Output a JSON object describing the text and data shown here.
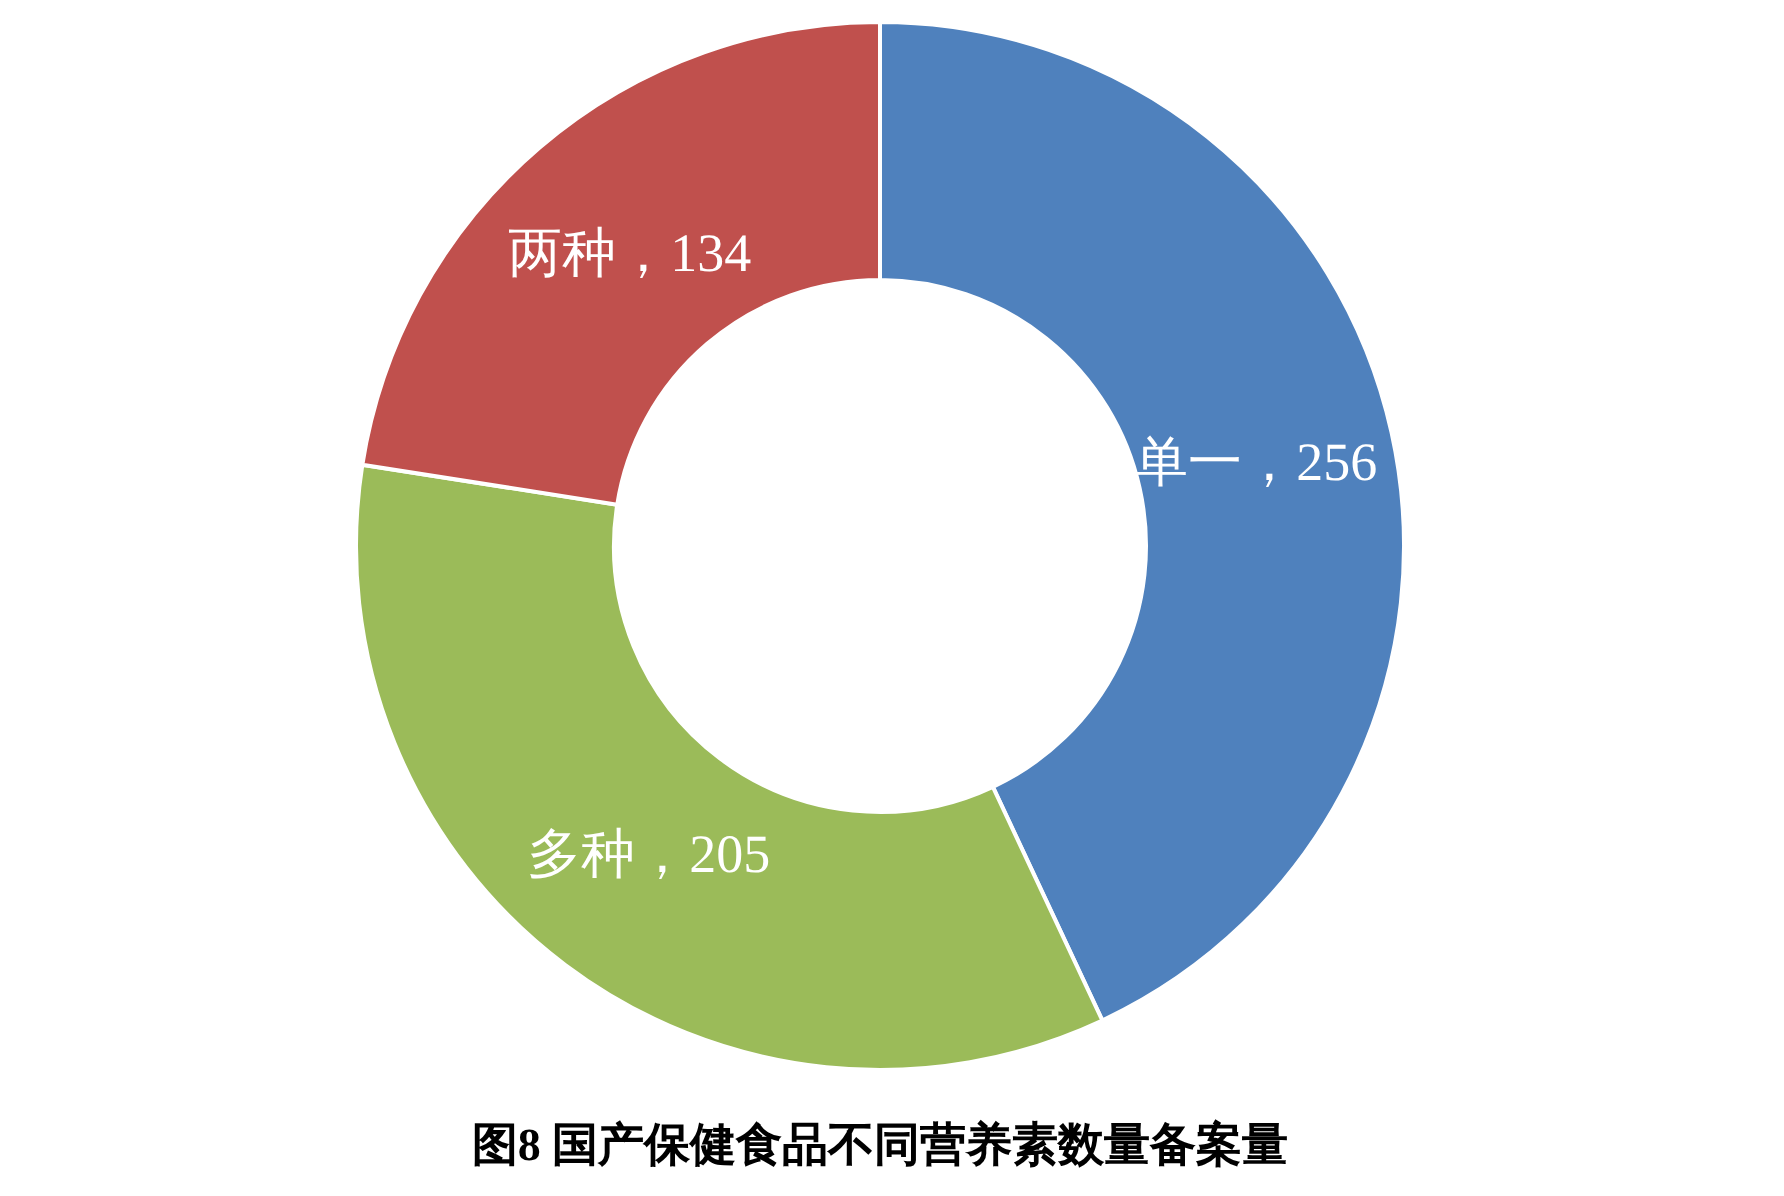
{
  "chart_data": {
    "type": "donut",
    "title": "图8 国产保健食品不同营养素数量备案量",
    "categories": [
      "单一",
      "多种",
      "两种"
    ],
    "values": [
      256,
      205,
      134
    ],
    "colors": [
      "#4f81bd",
      "#9bbb59",
      "#c0504d"
    ],
    "value_labels": [
      "，256",
      "，205",
      "，134"
    ]
  }
}
